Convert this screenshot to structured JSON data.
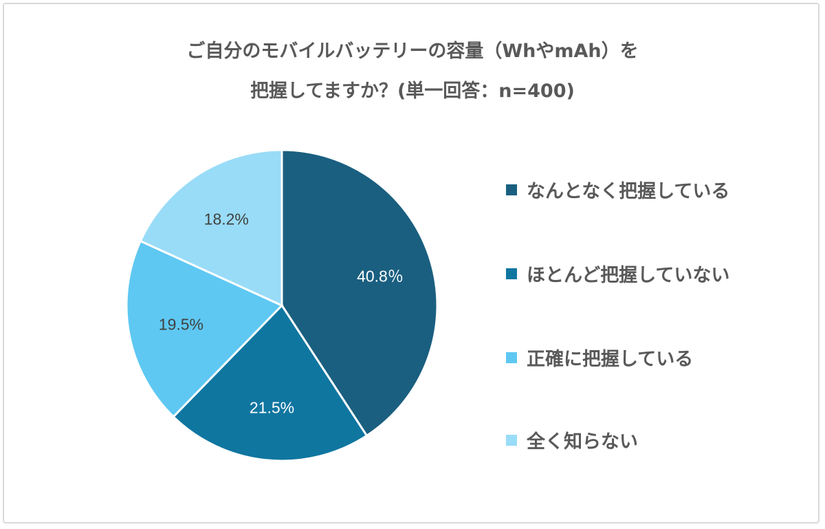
{
  "chart_data": {
    "type": "pie",
    "title_line1": "ご自分のモバイルバッテリーの容量（WhやmAh）を",
    "title_line2": "把握してますか？(単一回答：n=400)",
    "start_angle": "top, clockwise",
    "legend_position": "right",
    "slices": [
      {
        "label": "なんとなく把握している",
        "value": 40.8,
        "data_label": "40.8％",
        "color": "#1a5f80",
        "label_color": "#ffffff"
      },
      {
        "label": "ほとんど把握していない",
        "value": 21.5,
        "data_label": "21.5%",
        "color": "#0f76a0",
        "label_color": "#ffffff"
      },
      {
        "label": "正確に把握している",
        "value": 19.5,
        "data_label": "19.5%",
        "color": "#5ec8f2",
        "label_color": "#404040"
      },
      {
        "label": "全く知らない",
        "value": 18.2,
        "data_label": "18.2%",
        "color": "#99dcf7",
        "label_color": "#404040"
      }
    ]
  }
}
